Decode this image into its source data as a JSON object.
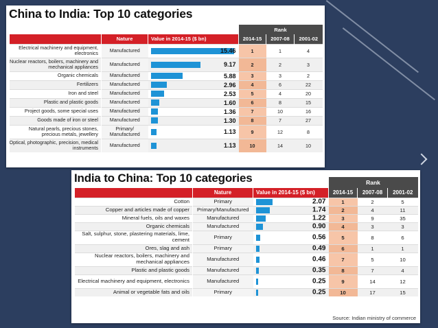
{
  "chart_data": [
    {
      "type": "table",
      "title": "China to India: Top 10 categories",
      "headers": {
        "rank_group": "Rank",
        "category": "",
        "nature": "Nature",
        "value": "Value in 2014-15 ($ bn)",
        "ranks": [
          "2014-15",
          "2007-08",
          "2001-02"
        ]
      },
      "max_value": 15.46,
      "rows": [
        {
          "category": "Electrical machinery and equipment, electronics",
          "nature": "Manufactured",
          "value": 15.46,
          "value_label": "15.46",
          "rank_2014": "1",
          "rank_2007": "1",
          "rank_2001": "4"
        },
        {
          "category": "Nuclear reactors, boilers, machinery and mechanical appliances",
          "nature": "Manufactured",
          "value": 9.17,
          "value_label": "9.17",
          "rank_2014": "2",
          "rank_2007": "2",
          "rank_2001": "3"
        },
        {
          "category": "Organic chemicals",
          "nature": "Manufactured",
          "value": 5.88,
          "value_label": "5.88",
          "rank_2014": "3",
          "rank_2007": "3",
          "rank_2001": "2"
        },
        {
          "category": "Fertilizers",
          "nature": "Manufactured",
          "value": 2.96,
          "value_label": "2.96",
          "rank_2014": "4",
          "rank_2007": "6",
          "rank_2001": "22"
        },
        {
          "category": "Iron and steel",
          "nature": "Manufactured",
          "value": 2.53,
          "value_label": "2.53",
          "rank_2014": "5",
          "rank_2007": "4",
          "rank_2001": "20"
        },
        {
          "category": "Plastic and plastic goods",
          "nature": "Manufactured",
          "value": 1.6,
          "value_label": "1.60",
          "rank_2014": "6",
          "rank_2007": "8",
          "rank_2001": "15"
        },
        {
          "category": "Project goods, some special uses",
          "nature": "Manufactured",
          "value": 1.36,
          "value_label": "1.36",
          "rank_2014": "7",
          "rank_2007": "10",
          "rank_2001": "16"
        },
        {
          "category": "Goods made of iron or steel",
          "nature": "Manufactured",
          "value": 1.3,
          "value_label": "1.30",
          "rank_2014": "8",
          "rank_2007": "7",
          "rank_2001": "27"
        },
        {
          "category": "Natural pearls, precious stones, precious metals, jewellery",
          "nature": "Primary/ Manufactured",
          "value": 1.13,
          "value_label": "1.13",
          "rank_2014": "9",
          "rank_2007": "12",
          "rank_2001": "8"
        },
        {
          "category": "Optical, photographic, precision, medical instruments",
          "nature": "Manufactured",
          "value": 1.13,
          "value_label": "1.13",
          "rank_2014": "10",
          "rank_2007": "14",
          "rank_2001": "10"
        }
      ]
    },
    {
      "type": "table",
      "title": "India to China: Top 10 categories",
      "headers": {
        "rank_group": "Rank",
        "category": "",
        "nature": "Nature",
        "value": "Value in 2014-15 ($ bn)",
        "ranks": [
          "2014-15",
          "2007-08",
          "2001-02"
        ]
      },
      "max_value": 2.07,
      "rows": [
        {
          "category": "Cotton",
          "nature": "Primary",
          "value": 2.07,
          "value_label": "2.07",
          "rank_2014": "1",
          "rank_2007": "2",
          "rank_2001": "5"
        },
        {
          "category": "Copper and articles made of copper",
          "nature": "Primary/Manufactured",
          "value": 1.74,
          "value_label": "1.74",
          "rank_2014": "2",
          "rank_2007": "4",
          "rank_2001": "11"
        },
        {
          "category": "Mineral fuels, oils and waxes",
          "nature": "Manufactured",
          "value": 1.22,
          "value_label": "1.22",
          "rank_2014": "3",
          "rank_2007": "9",
          "rank_2001": "35"
        },
        {
          "category": "Organic chemicals",
          "nature": "Manufactured",
          "value": 0.9,
          "value_label": "0.90",
          "rank_2014": "4",
          "rank_2007": "3",
          "rank_2001": "3"
        },
        {
          "category": "Salt, sulphur, stone, plastering materials, lime, cement",
          "nature": "Primary",
          "value": 0.56,
          "value_label": "0.56",
          "rank_2014": "5",
          "rank_2007": "8",
          "rank_2001": "6"
        },
        {
          "category": "Ores, slag and ash",
          "nature": "Primary",
          "value": 0.49,
          "value_label": "0.49",
          "rank_2014": "6",
          "rank_2007": "1",
          "rank_2001": "1"
        },
        {
          "category": "Nuclear reactors, boilers, machinery and mechanical appliances",
          "nature": "Manufactured",
          "value": 0.46,
          "value_label": "0.46",
          "rank_2014": "7",
          "rank_2007": "5",
          "rank_2001": "10"
        },
        {
          "category": "Plastic and plastic goods",
          "nature": "Manufactured",
          "value": 0.35,
          "value_label": "0.35",
          "rank_2014": "8",
          "rank_2007": "7",
          "rank_2001": "4"
        },
        {
          "category": "Electrical machinery and equipment, electronics",
          "nature": "Manufactured",
          "value": 0.25,
          "value_label": "0.25",
          "rank_2014": "9",
          "rank_2007": "14",
          "rank_2001": "12"
        },
        {
          "category": "Animal or vegetable fats and oils",
          "nature": "Primary",
          "value": 0.25,
          "value_label": "0.25",
          "rank_2014": "10",
          "rank_2007": "17",
          "rank_2001": "15"
        }
      ],
      "source": "Source: Indian ministry of commerce"
    }
  ],
  "colors": {
    "header_red": "#d42027",
    "bar_blue": "#1e93d6",
    "rank_highlight": "#f7c5a8",
    "background": "#2c3e5f"
  }
}
